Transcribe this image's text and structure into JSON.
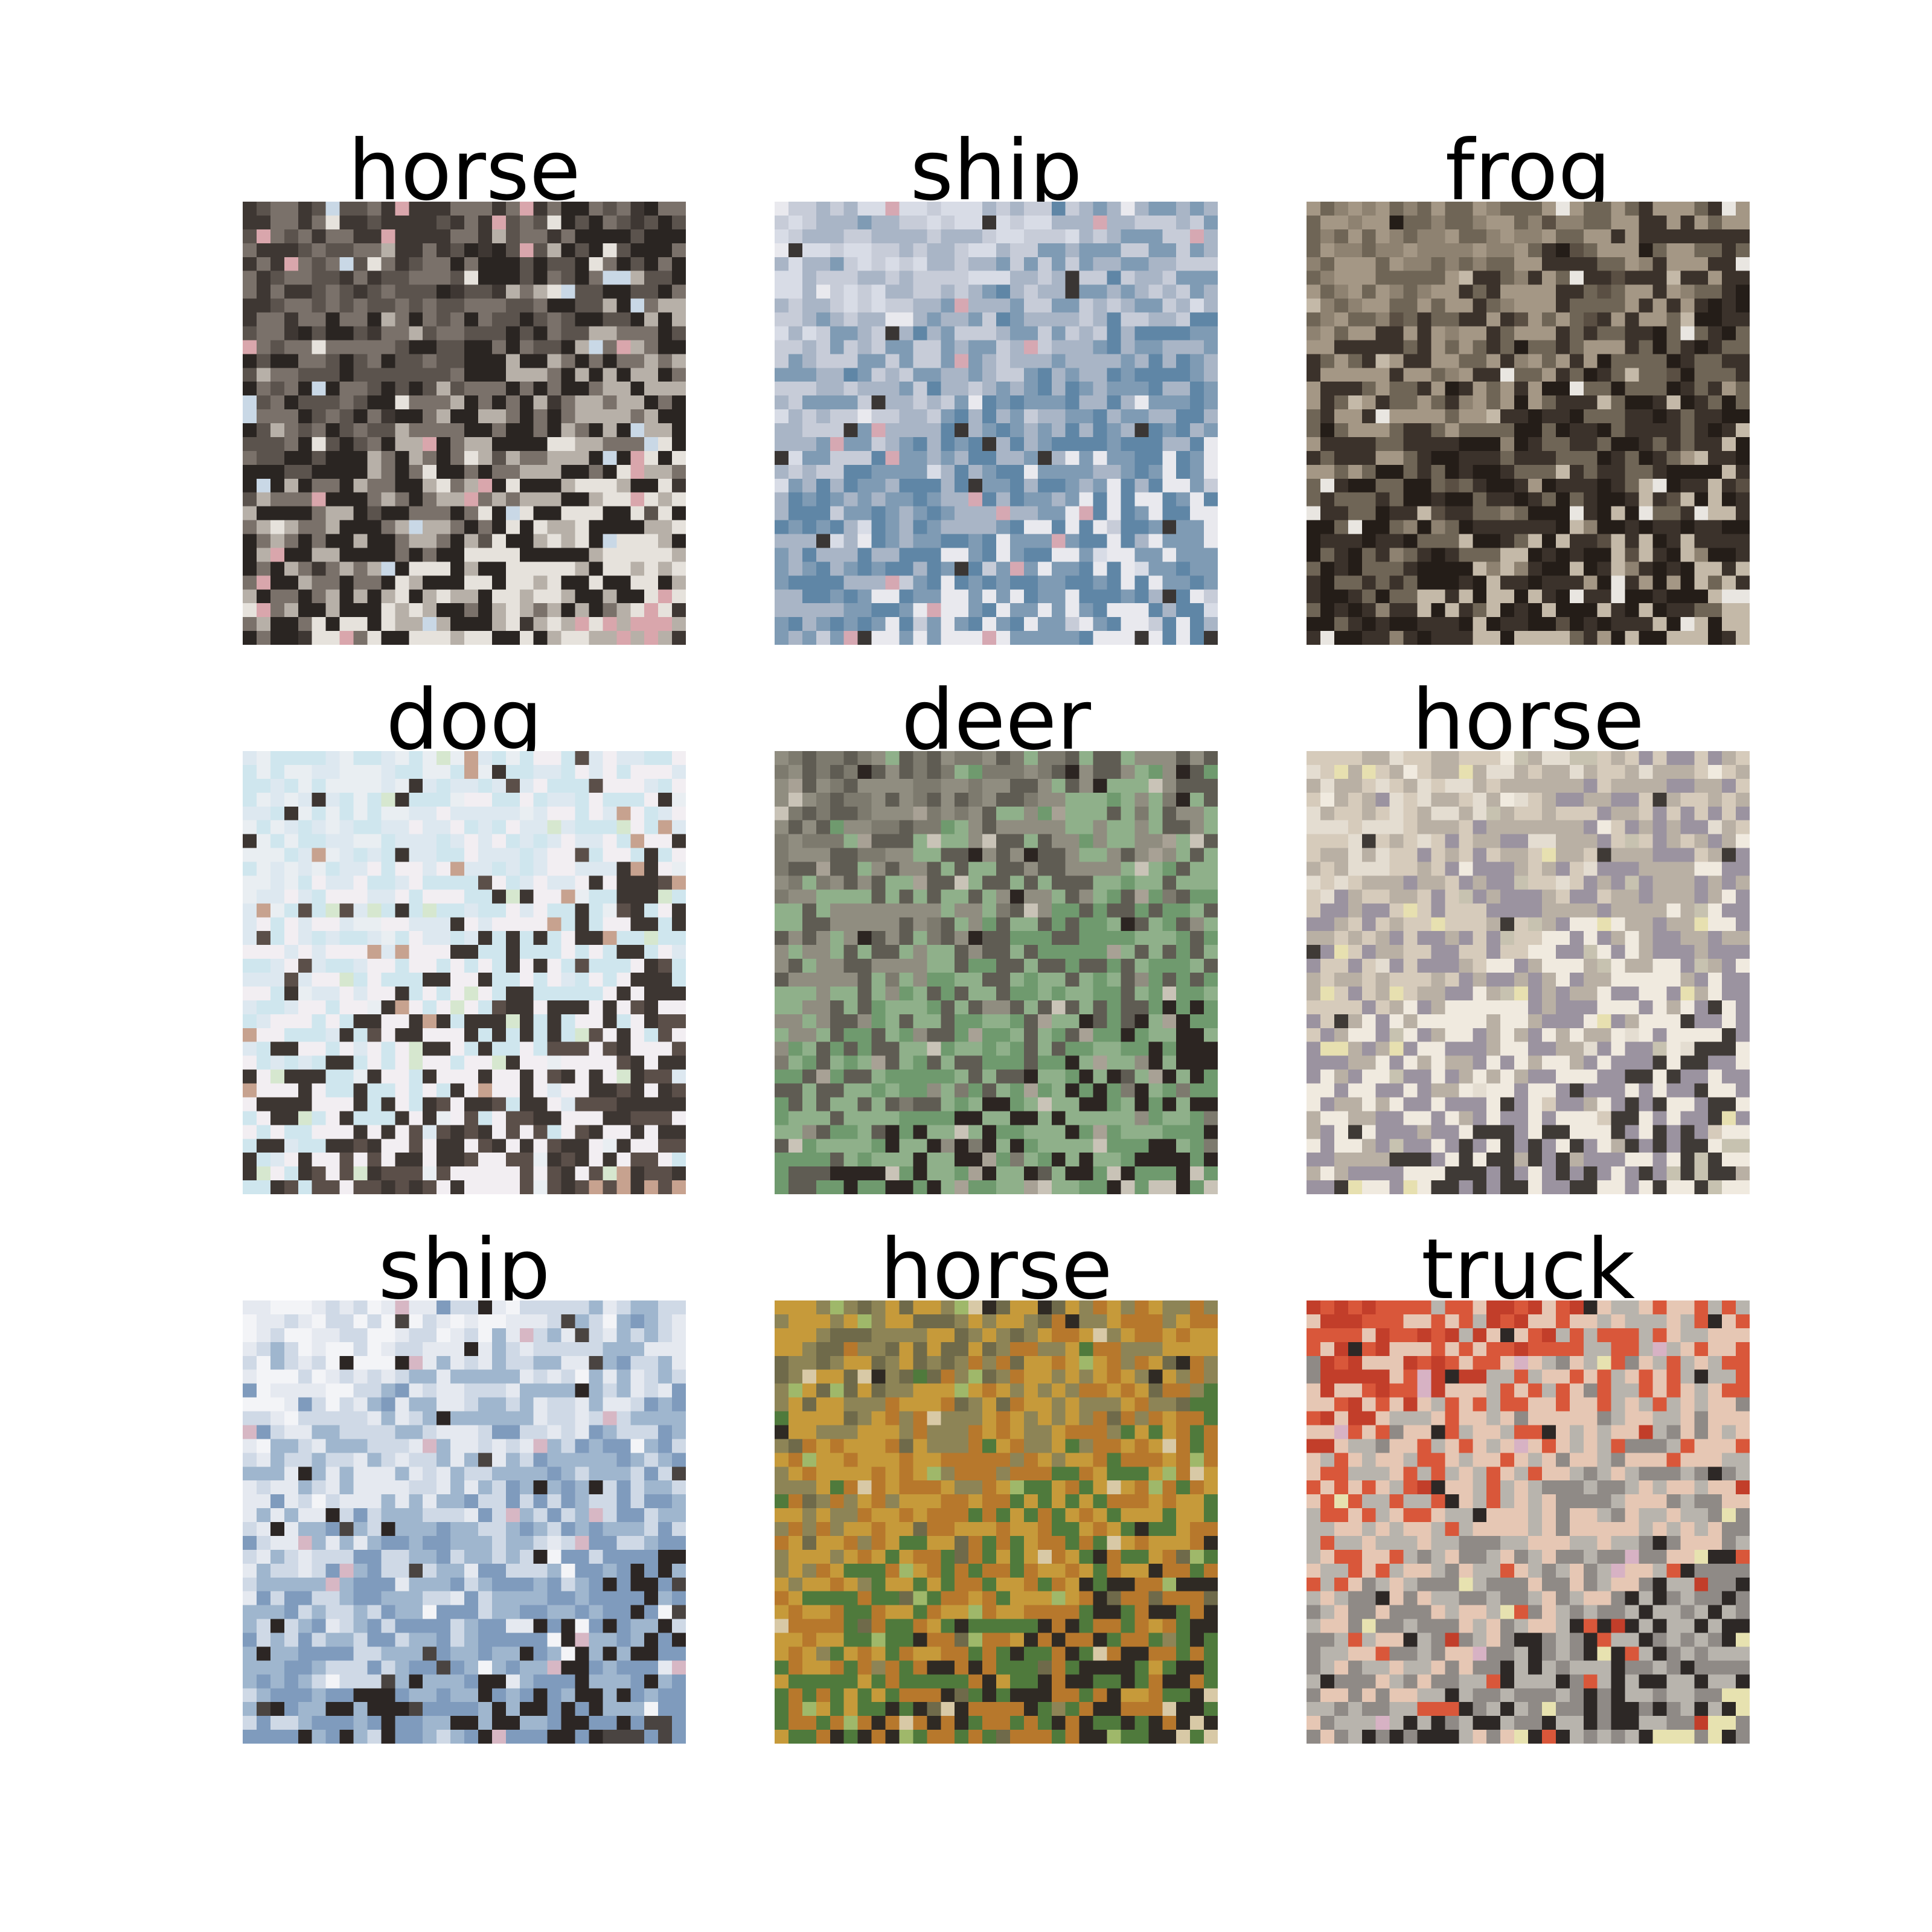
{
  "figure": {
    "background": "#ffffff",
    "panels": [
      {
        "title": "horse",
        "palette": [
          "#3e3733",
          "#5b534d",
          "#7a716a",
          "#2a2522",
          "#b7b0a8",
          "#e6e2dc",
          "#d9a6ac",
          "#c9d8e6"
        ]
      },
      {
        "title": "ship",
        "palette": [
          "#d8dce6",
          "#c7ccd8",
          "#a9b5c6",
          "#7f9bb4",
          "#5f86a6",
          "#e9e9ee",
          "#3a3634",
          "#d6a8b2"
        ]
      },
      {
        "title": "frog",
        "palette": [
          "#8e8271",
          "#a49785",
          "#6f6556",
          "#3b322b",
          "#241d18",
          "#c4b9a8",
          "#e9e6e1",
          "#5a4f43"
        ]
      },
      {
        "title": "dog",
        "palette": [
          "#e9eef2",
          "#dde8f0",
          "#cfe6ee",
          "#f2eef2",
          "#3d3632",
          "#5b4f49",
          "#c7a28f",
          "#d6e7cf"
        ]
      },
      {
        "title": "deer",
        "palette": [
          "#7d7a6e",
          "#908d80",
          "#5f5c53",
          "#8fb08a",
          "#6f9a6e",
          "#2c2522",
          "#c9c3b7",
          "#a8a195"
        ]
      },
      {
        "title": "horse",
        "palette": [
          "#e4ddd1",
          "#d6cbbb",
          "#b9b0a4",
          "#9b93a0",
          "#f0eadf",
          "#3f3a36",
          "#c7c2b0",
          "#e7e0b0"
        ]
      },
      {
        "title": "ship",
        "palette": [
          "#f3f4f7",
          "#e5e9f0",
          "#cfd9e6",
          "#9fb6ce",
          "#7f9bbd",
          "#2c2624",
          "#4a4441",
          "#d7b7c4"
        ]
      },
      {
        "title": "horse",
        "palette": [
          "#6f6a4a",
          "#8d8456",
          "#c69a3a",
          "#b7782c",
          "#4f7a3c",
          "#2f2a24",
          "#d8c9a6",
          "#9fb86a"
        ]
      },
      {
        "title": "truck",
        "palette": [
          "#c23e2a",
          "#d9573a",
          "#e6c7b4",
          "#b8b4ad",
          "#8f8a86",
          "#2d2826",
          "#e7e2b0",
          "#d7b2c4"
        ]
      }
    ]
  }
}
